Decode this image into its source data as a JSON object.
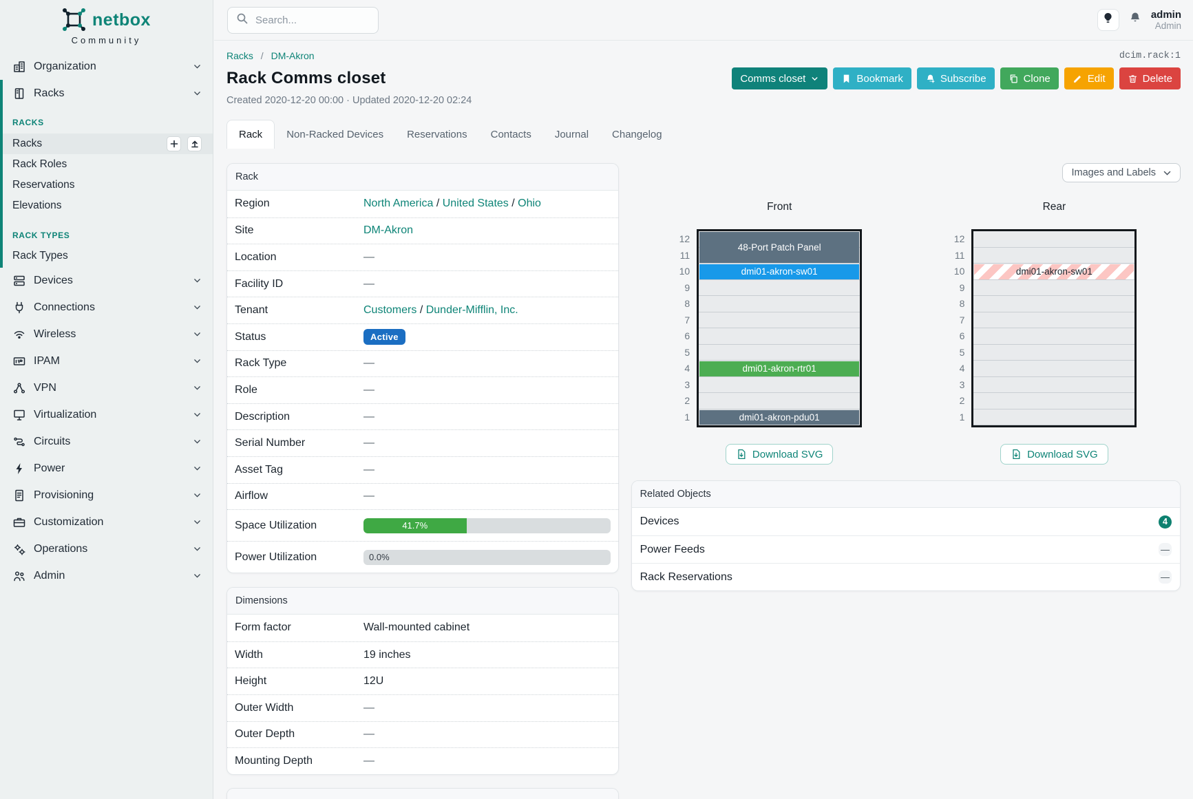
{
  "brand": {
    "name": "netbox",
    "subtitle": "Community"
  },
  "sidebar": {
    "sections": [
      {
        "type": "item",
        "label": "Organization",
        "icon": "organization-icon"
      },
      {
        "type": "item",
        "label": "Racks",
        "icon": "racks-icon"
      },
      {
        "type": "group",
        "label": "RACKS",
        "items": [
          {
            "label": "Racks",
            "active": true
          },
          {
            "label": "Rack Roles"
          },
          {
            "label": "Reservations"
          },
          {
            "label": "Elevations"
          }
        ]
      },
      {
        "type": "group",
        "label": "RACK TYPES",
        "second": true,
        "items": [
          {
            "label": "Rack Types"
          }
        ]
      },
      {
        "type": "item",
        "label": "Devices",
        "icon": "devices-icon"
      },
      {
        "type": "item",
        "label": "Connections",
        "icon": "connections-icon"
      },
      {
        "type": "item",
        "label": "Wireless",
        "icon": "wireless-icon"
      },
      {
        "type": "item",
        "label": "IPAM",
        "icon": "ipam-icon"
      },
      {
        "type": "item",
        "label": "VPN",
        "icon": "vpn-icon"
      },
      {
        "type": "item",
        "label": "Virtualization",
        "icon": "virtualization-icon"
      },
      {
        "type": "item",
        "label": "Circuits",
        "icon": "circuits-icon"
      },
      {
        "type": "item",
        "label": "Power",
        "icon": "power-icon"
      },
      {
        "type": "item",
        "label": "Provisioning",
        "icon": "provisioning-icon"
      },
      {
        "type": "item",
        "label": "Customization",
        "icon": "customization-icon"
      },
      {
        "type": "item",
        "label": "Operations",
        "icon": "operations-icon"
      },
      {
        "type": "item",
        "label": "Admin",
        "icon": "admin-icon"
      }
    ]
  },
  "topbar": {
    "search_placeholder": "Search...",
    "username": "admin",
    "role": "Admin"
  },
  "page": {
    "breadcrumb": [
      "Racks",
      "DM-Akron"
    ],
    "object_id": "dcim.rack:1",
    "title": "Rack Comms closet",
    "meta": "Created 2020-12-20 00:00 · Updated 2020-12-20 02:24",
    "actions": [
      {
        "label": "Comms closet",
        "color": "#0f827a",
        "icon": "chevron-after",
        "name": "status-button"
      },
      {
        "label": "Bookmark",
        "color": "#2fb0c5",
        "icon": "bookmark",
        "name": "bookmark-button"
      },
      {
        "label": "Subscribe",
        "color": "#2fb0c5",
        "icon": "bell-plus",
        "name": "subscribe-button"
      },
      {
        "label": "Clone",
        "color": "#41a85c",
        "icon": "copy",
        "name": "clone-button"
      },
      {
        "label": "Edit",
        "color": "#f6a301",
        "icon": "pencil",
        "name": "edit-button"
      },
      {
        "label": "Delete",
        "color": "#db4440",
        "icon": "trash",
        "name": "delete-button"
      }
    ],
    "tabs": [
      {
        "label": "Rack",
        "active": true
      },
      {
        "label": "Non-Racked Devices"
      },
      {
        "label": "Reservations"
      },
      {
        "label": "Contacts"
      },
      {
        "label": "Journal"
      },
      {
        "label": "Changelog"
      }
    ]
  },
  "rack_card": {
    "title": "Rack",
    "rows": [
      {
        "label": "Region",
        "type": "links",
        "parts": [
          "North America",
          "United States",
          "Ohio"
        ]
      },
      {
        "label": "Site",
        "type": "links",
        "parts": [
          "DM-Akron"
        ]
      },
      {
        "label": "Location",
        "type": "dash"
      },
      {
        "label": "Facility ID",
        "type": "dash"
      },
      {
        "label": "Tenant",
        "type": "links",
        "parts": [
          "Customers",
          "Dunder-Mifflin, Inc."
        ]
      },
      {
        "label": "Status",
        "type": "badge",
        "text": "Active"
      },
      {
        "label": "Rack Type",
        "type": "dash"
      },
      {
        "label": "Role",
        "type": "dash"
      },
      {
        "label": "Description",
        "type": "dash"
      },
      {
        "label": "Serial Number",
        "type": "dash"
      },
      {
        "label": "Asset Tag",
        "type": "dash"
      },
      {
        "label": "Airflow",
        "type": "dash"
      },
      {
        "label": "Space Utilization",
        "type": "progress",
        "percent": 41.7,
        "text": "41.7%"
      },
      {
        "label": "Power Utilization",
        "type": "progress",
        "percent": 0,
        "text": "0.0%"
      }
    ]
  },
  "dimensions_card": {
    "title": "Dimensions",
    "rows": [
      {
        "label": "Form factor",
        "type": "text",
        "text": "Wall-mounted cabinet"
      },
      {
        "label": "Width",
        "type": "text",
        "text": "19 inches"
      },
      {
        "label": "Height",
        "type": "text",
        "text": "12U"
      },
      {
        "label": "Outer Width",
        "type": "dash"
      },
      {
        "label": "Outer Depth",
        "type": "dash"
      },
      {
        "label": "Mounting Depth",
        "type": "dash"
      }
    ]
  },
  "elevations": {
    "toolbar_label": "Images and Labels",
    "download_label": "Download SVG",
    "unit_count": 12,
    "front": {
      "label": "Front",
      "devices": [
        {
          "name": "48-Port Patch Panel",
          "top_unit": 12,
          "units": 2,
          "color": "#5d7181",
          "text_color": "#fff"
        },
        {
          "name": "dmi01-akron-sw01",
          "top_unit": 10,
          "units": 1,
          "color": "#1899e9",
          "text_color": "#fff"
        },
        {
          "name": "dmi01-akron-rtr01",
          "top_unit": 4,
          "units": 1,
          "color": "#4cad52",
          "text_color": "#fff"
        },
        {
          "name": "dmi01-akron-pdu01",
          "top_unit": 1,
          "units": 1,
          "color": "#5d7181",
          "text_color": "#fff"
        }
      ]
    },
    "rear": {
      "label": "Rear",
      "devices": [
        {
          "name": "dmi01-akron-sw01",
          "top_unit": 10,
          "units": 1,
          "striped": true,
          "text_color": "#1a222b"
        }
      ]
    }
  },
  "related": {
    "title": "Related Objects",
    "rows": [
      {
        "label": "Devices",
        "count": "4"
      },
      {
        "label": "Power Feeds",
        "count": null
      },
      {
        "label": "Rack Reservations",
        "count": null
      }
    ]
  }
}
